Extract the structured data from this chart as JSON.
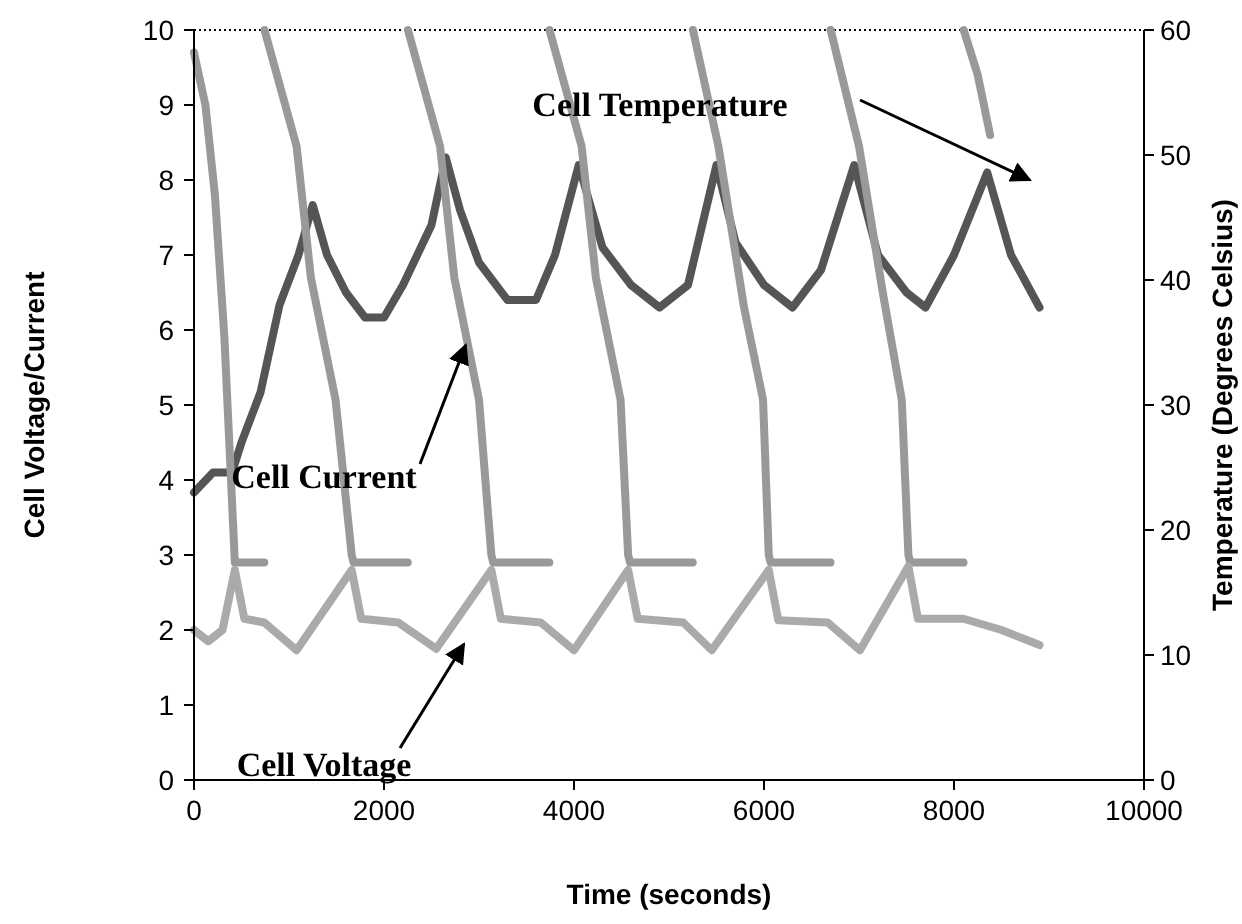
{
  "chart_data": {
    "type": "line",
    "xlabel": "Time (seconds)",
    "ylabel": "Cell Voltage/Current",
    "y2label": "Temperature (Degrees Celsius)",
    "xlim": [
      0,
      10000
    ],
    "xticks": [
      0,
      2000,
      4000,
      6000,
      8000,
      10000
    ],
    "ylim": [
      0,
      10
    ],
    "yticks": [
      0,
      1,
      2,
      3,
      4,
      5,
      6,
      7,
      8,
      9,
      10
    ],
    "y2lim": [
      0,
      60
    ],
    "y2ticks": [
      0,
      10,
      20,
      30,
      40,
      50,
      60
    ],
    "grid": false,
    "marker": "none",
    "line_style": "solid",
    "series": [
      {
        "color": "#555555",
        "axis": "y2",
        "x": [
          0,
          200,
          400,
          500,
          700,
          900,
          1100,
          1250,
          1400,
          1600,
          1800,
          2000,
          2200,
          2500,
          2650,
          2800,
          3000,
          3300,
          3600,
          3800,
          4050,
          4300,
          4600,
          4900,
          5200,
          5500,
          5700,
          6000,
          6300,
          6600,
          6950,
          7200,
          7500,
          7700,
          8000,
          8350,
          8600,
          8900
        ],
        "values": [
          23,
          24.6,
          24.6,
          27,
          31,
          38,
          42,
          46,
          42,
          39,
          37,
          37,
          39.6,
          44.4,
          49.8,
          45.6,
          41.4,
          38.4,
          38.4,
          42,
          49.2,
          42.6,
          39.6,
          37.8,
          39.6,
          49.2,
          43,
          39.6,
          37.8,
          40.8,
          49.2,
          42,
          39,
          37.8,
          42,
          48.6,
          42,
          37.8
        ]
      },
      {
        "color": "#999999",
        "x": [
          0,
          120,
          220,
          320,
          430,
          740,
          null,
          742,
          1080,
          1230,
          1490,
          1660,
          1680,
          2250,
          null,
          2252,
          2590,
          2740,
          3000,
          3130,
          3150,
          3740,
          null,
          3742,
          4080,
          4230,
          4490,
          4570,
          4590,
          5250,
          null,
          5252,
          5520,
          5790,
          5990,
          6050,
          6070,
          6700,
          null,
          6702,
          7000,
          7250,
          7450,
          7520,
          7540,
          8100,
          null,
          8102,
          8250,
          8380
        ],
        "values": [
          9.7,
          9.0,
          7.8,
          5.9,
          2.9,
          2.9,
          null,
          10,
          8.45,
          6.7,
          5.07,
          3.0,
          2.9,
          2.9,
          null,
          10,
          8.45,
          6.7,
          5.07,
          3.0,
          2.9,
          2.9,
          null,
          10,
          8.45,
          6.7,
          5.07,
          3.0,
          2.9,
          2.9,
          null,
          10,
          8.45,
          6.3,
          5.07,
          3.0,
          2.9,
          2.9,
          null,
          10,
          8.45,
          6.5,
          5.07,
          3.0,
          2.9,
          2.9,
          null,
          10,
          9.4,
          8.6
        ]
      },
      {
        "color": "#aaaaaa",
        "x": [
          0,
          150,
          300,
          430,
          530,
          740,
          1080,
          1660,
          1760,
          2150,
          2550,
          3130,
          3230,
          3650,
          4000,
          4570,
          4670,
          5150,
          5450,
          6050,
          6150,
          6670,
          7010,
          7520,
          7620,
          8100,
          8500,
          8900
        ],
        "values": [
          2.0,
          1.85,
          2.0,
          2.8,
          2.15,
          2.1,
          1.73,
          2.8,
          2.15,
          2.1,
          1.75,
          2.8,
          2.15,
          2.1,
          1.73,
          2.8,
          2.15,
          2.1,
          1.73,
          2.8,
          2.13,
          2.1,
          1.73,
          2.85,
          2.15,
          2.15,
          2.0,
          1.8
        ]
      }
    ],
    "annotations": [
      "Cell Temperature",
      {
        "text": "Cell Current",
        "x": 2860,
        "y": 5.8
      },
      "Cell Voltage"
    ]
  }
}
